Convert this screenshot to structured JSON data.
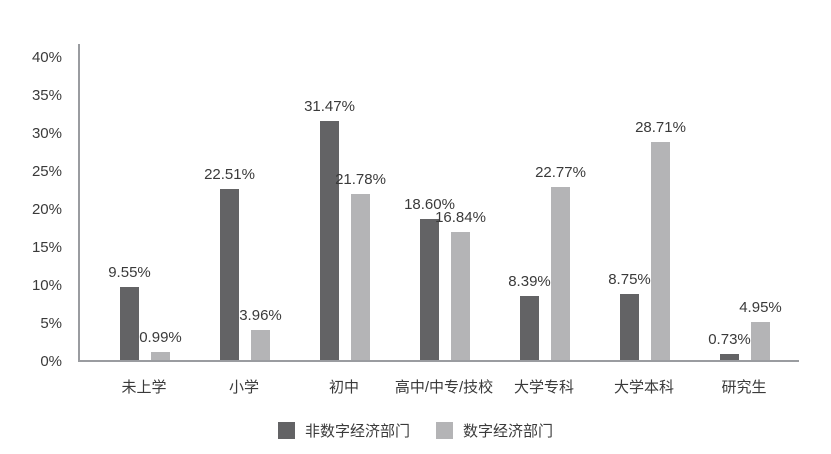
{
  "chart_data": {
    "type": "bar",
    "title": "",
    "xlabel": "",
    "ylabel": "",
    "grid": false,
    "legend_position": "bottom",
    "categories": [
      "未上学",
      "小学",
      "初中",
      "高中/中专/技校",
      "大学专科",
      "大学本科",
      "研究生"
    ],
    "series": [
      {
        "name": "非数字经济部门",
        "color": "#636365",
        "values": [
          9.55,
          22.51,
          31.47,
          18.6,
          8.39,
          8.75,
          0.73
        ],
        "labels": [
          "9.55%",
          "22.51%",
          "31.47%",
          "18.60%",
          "8.39%",
          "8.75%",
          "0.73%"
        ]
      },
      {
        "name": "数字经济部门",
        "color": "#b4b4b6",
        "values": [
          0.99,
          3.96,
          21.78,
          16.84,
          22.77,
          28.71,
          4.95
        ],
        "labels": [
          "0.99%",
          "3.96%",
          "21.78%",
          "16.84%",
          "22.77%",
          "28.71%",
          "4.95%"
        ]
      }
    ],
    "y_axis": {
      "min": 0,
      "max": 40,
      "step": 5,
      "tick_labels": [
        "0%",
        "5%",
        "10%",
        "15%",
        "20%",
        "25%",
        "30%",
        "35%",
        "40%"
      ]
    }
  },
  "colors": {
    "axis": "#9a9ca0",
    "text": "#3a3a3a",
    "background": "#ffffff"
  }
}
